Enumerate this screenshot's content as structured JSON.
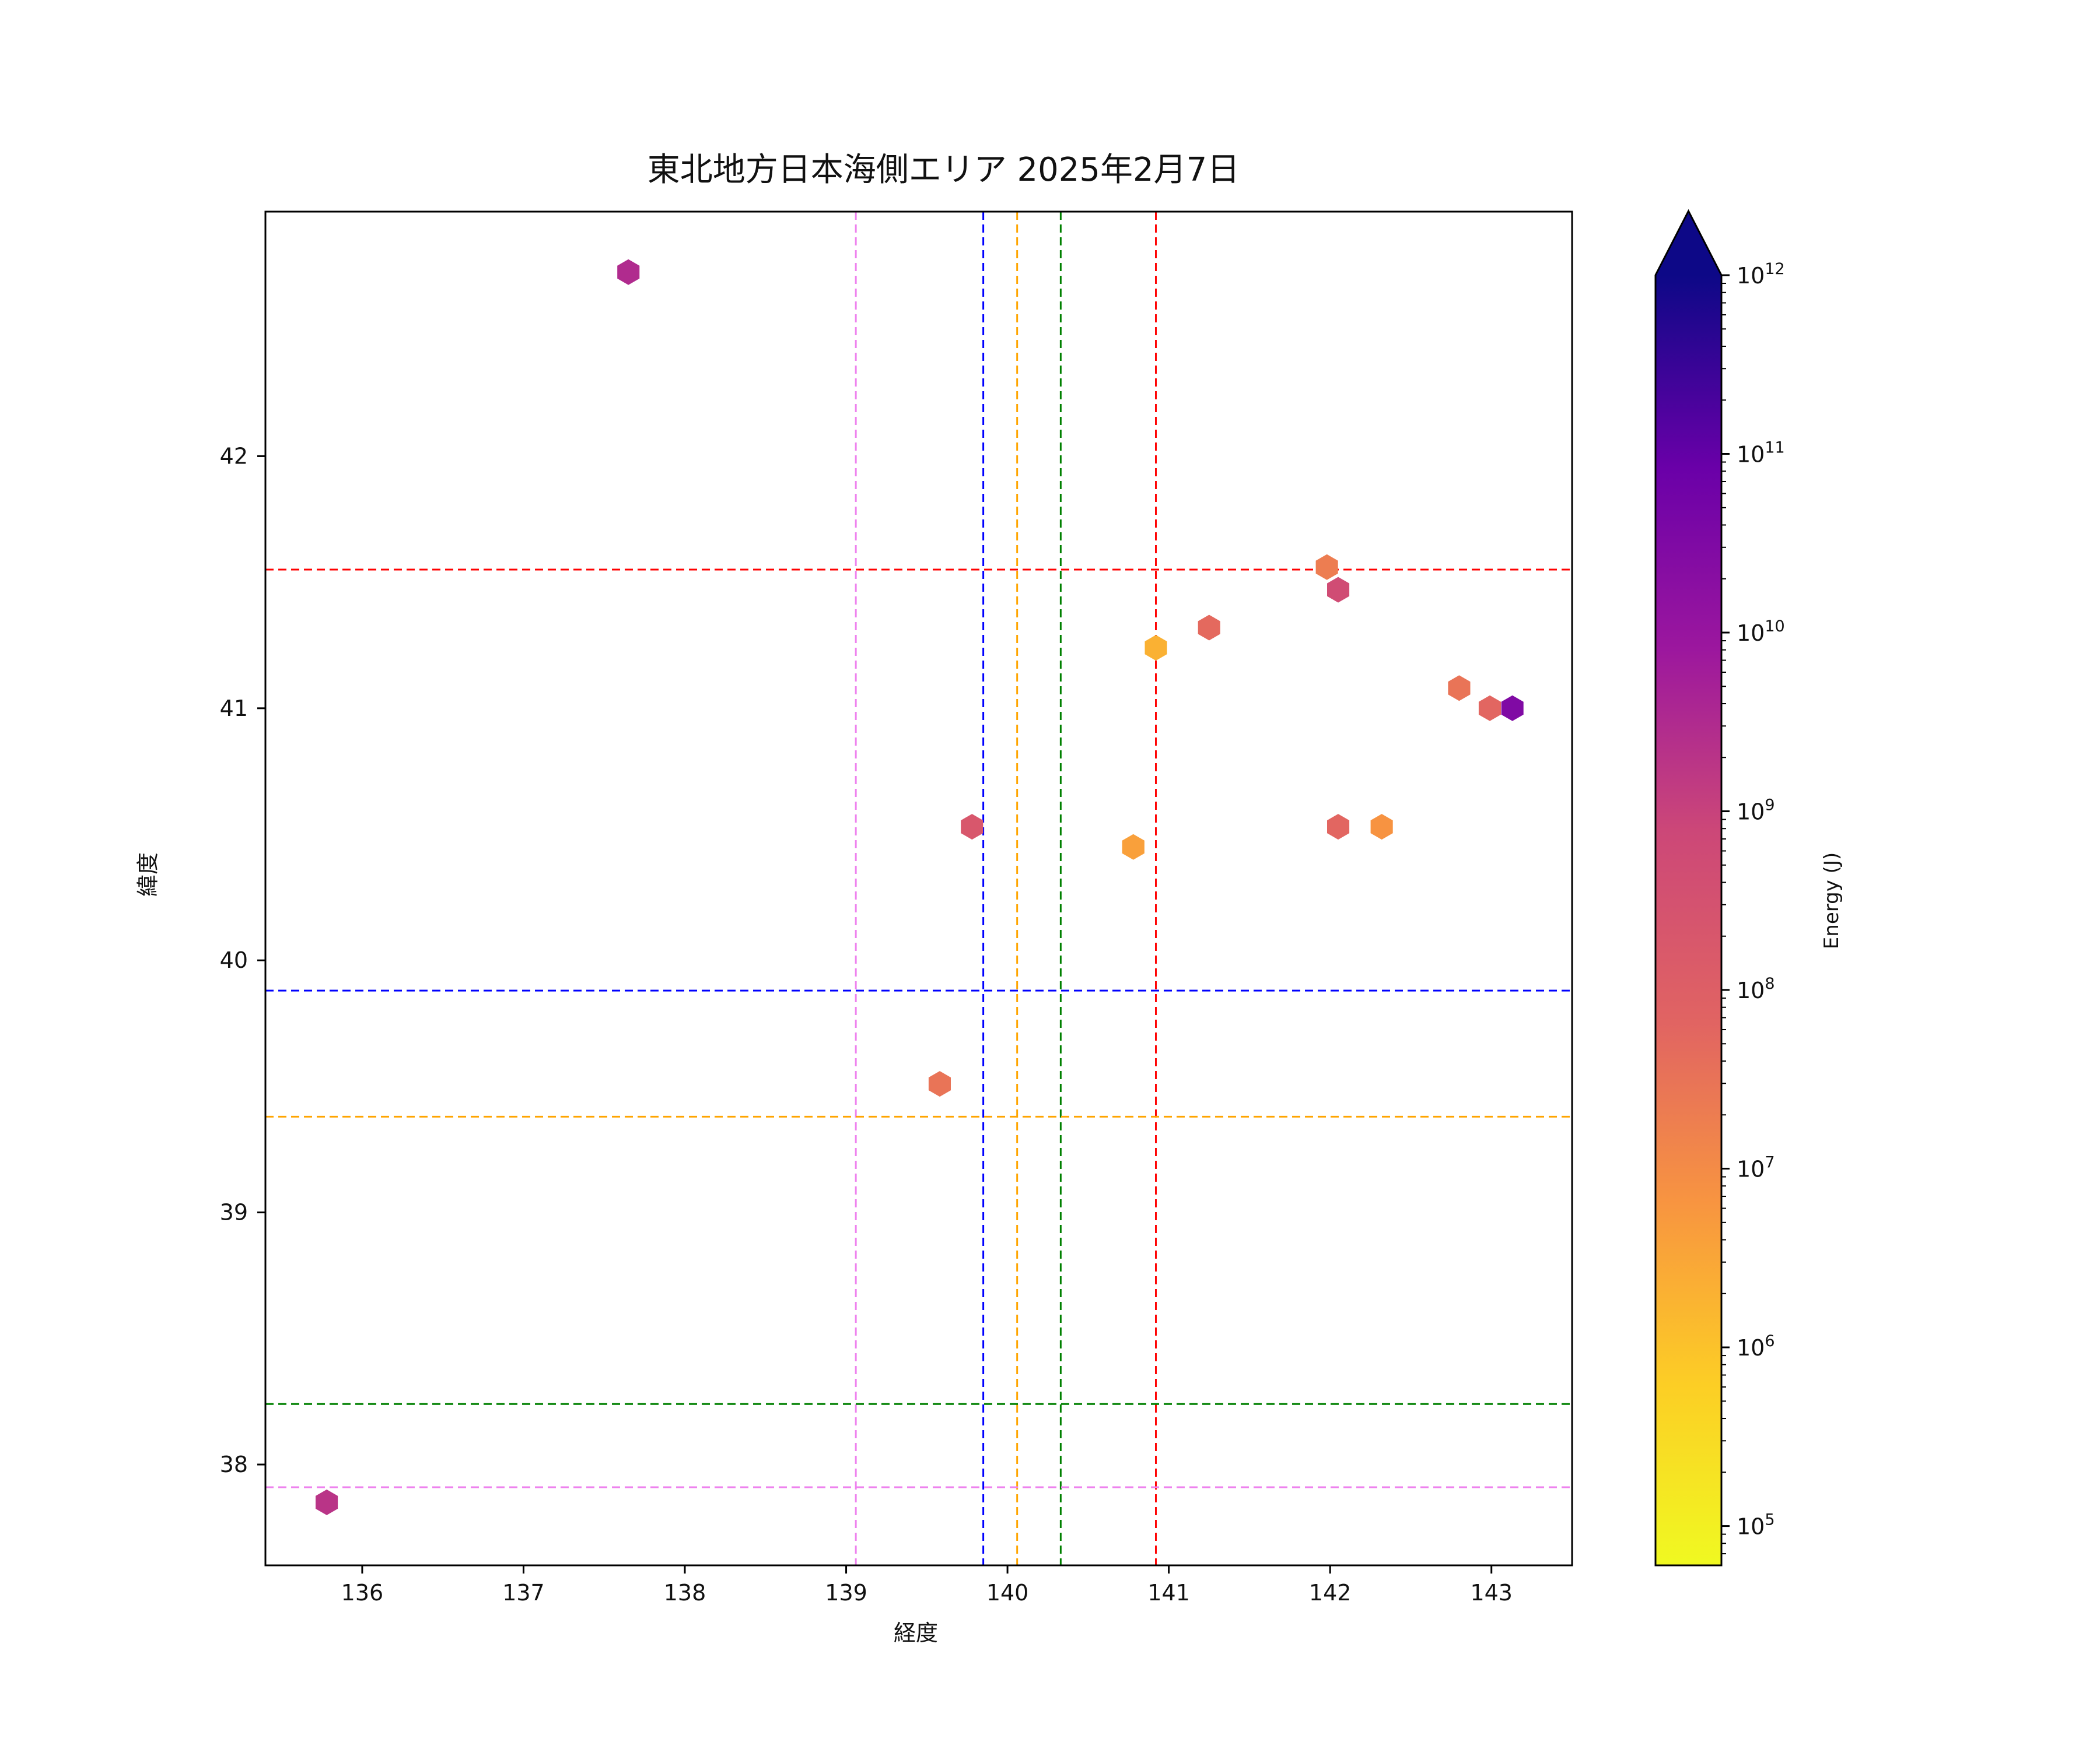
{
  "chart_data": {
    "type": "scatter",
    "title": "東北地方日本海側エリア 2025年2月7日",
    "xlabel": "経度",
    "ylabel": "緯度",
    "xlim": [
      135.4,
      143.5
    ],
    "ylim": [
      37.6,
      42.97
    ],
    "xticks": [
      136,
      137,
      138,
      139,
      140,
      141,
      142,
      143
    ],
    "yticks": [
      38,
      39,
      40,
      41,
      42
    ],
    "grid": false,
    "marker": "hexagon",
    "points": [
      {
        "lon": 137.65,
        "lat": 42.73,
        "energy": 3000000000.0
      },
      {
        "lon": 135.78,
        "lat": 37.85,
        "energy": 2000000000.0
      },
      {
        "lon": 141.98,
        "lat": 41.56,
        "energy": 20000000.0
      },
      {
        "lon": 142.05,
        "lat": 41.47,
        "energy": 500000000.0
      },
      {
        "lon": 141.25,
        "lat": 41.32,
        "energy": 50000000.0
      },
      {
        "lon": 140.92,
        "lat": 41.24,
        "energy": 2000000.0
      },
      {
        "lon": 142.8,
        "lat": 41.08,
        "energy": 30000000.0
      },
      {
        "lon": 142.99,
        "lat": 41.0,
        "energy": 60000000.0
      },
      {
        "lon": 143.13,
        "lat": 41.0,
        "energy": 30000000000.0
      },
      {
        "lon": 139.78,
        "lat": 40.53,
        "energy": 200000000.0
      },
      {
        "lon": 142.05,
        "lat": 40.53,
        "energy": 60000000.0
      },
      {
        "lon": 142.32,
        "lat": 40.53,
        "energy": 7000000.0
      },
      {
        "lon": 140.78,
        "lat": 40.45,
        "energy": 4000000.0
      },
      {
        "lon": 139.58,
        "lat": 39.51,
        "energy": 30000000.0
      }
    ],
    "reference_lines": {
      "vertical": [
        {
          "x": 139.06,
          "color": "#ee82ee"
        },
        {
          "x": 139.85,
          "color": "#0000ff"
        },
        {
          "x": 140.06,
          "color": "#ffa500"
        },
        {
          "x": 140.33,
          "color": "#008000"
        },
        {
          "x": 140.92,
          "color": "#ff0000"
        }
      ],
      "horizontal": [
        {
          "y": 41.55,
          "color": "#ff0000"
        },
        {
          "y": 39.88,
          "color": "#0000ff"
        },
        {
          "y": 39.38,
          "color": "#ffa500"
        },
        {
          "y": 38.24,
          "color": "#008000"
        },
        {
          "y": 37.91,
          "color": "#ee82ee"
        }
      ],
      "style": "dashed"
    },
    "colorbar": {
      "label": "Energy (J)",
      "scale": "log",
      "colormap": "plasma_r",
      "range_exponent": [
        4.78,
        12
      ],
      "tick_exponents": [
        5,
        6,
        7,
        8,
        9,
        10,
        11,
        12
      ],
      "tick_base": "10",
      "extend": "max",
      "extend_color": "#0d0887"
    }
  }
}
